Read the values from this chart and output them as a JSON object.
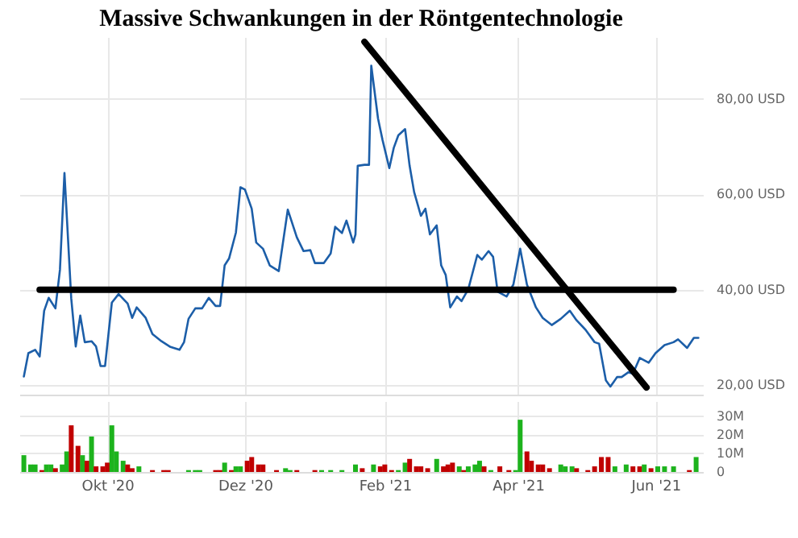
{
  "chart_data": [
    {
      "type": "line",
      "title": "Massive Schwankungen in der Röntgentechnologie",
      "x": [
        "2020-08-25",
        "2020-08-27",
        "2020-08-30",
        "2020-09-01",
        "2020-09-03",
        "2020-09-05",
        "2020-09-08",
        "2020-09-10",
        "2020-09-12",
        "2020-09-15",
        "2020-09-17",
        "2020-09-19",
        "2020-09-21",
        "2020-09-24",
        "2020-09-26",
        "2020-09-28",
        "2020-09-30",
        "2020-10-03",
        "2020-10-06",
        "2020-10-10",
        "2020-10-12",
        "2020-10-14",
        "2020-10-18",
        "2020-10-21",
        "2020-10-25",
        "2020-10-29",
        "2020-11-02",
        "2020-11-04",
        "2020-11-06",
        "2020-11-09",
        "2020-11-12",
        "2020-11-15",
        "2020-11-18",
        "2020-11-20",
        "2020-11-22",
        "2020-11-24",
        "2020-11-27",
        "2020-11-29",
        "2020-12-01",
        "2020-12-04",
        "2020-12-06",
        "2020-12-09",
        "2020-12-12",
        "2020-12-16",
        "2020-12-20",
        "2020-12-24",
        "2020-12-27",
        "2020-12-30",
        "2021-01-01",
        "2021-01-05",
        "2021-01-08",
        "2021-01-10",
        "2021-01-13",
        "2021-01-15",
        "2021-01-18",
        "2021-01-19",
        "2021-01-20",
        "2021-01-23",
        "2021-01-25",
        "2021-01-26",
        "2021-01-29",
        "2021-01-31",
        "2021-02-03",
        "2021-02-05",
        "2021-02-07",
        "2021-02-10",
        "2021-02-12",
        "2021-02-14",
        "2021-02-17",
        "2021-02-19",
        "2021-02-21",
        "2021-02-24",
        "2021-02-26",
        "2021-02-28",
        "2021-03-02",
        "2021-03-05",
        "2021-03-07",
        "2021-03-10",
        "2021-03-14",
        "2021-03-16",
        "2021-03-19",
        "2021-03-21",
        "2021-03-23",
        "2021-03-27",
        "2021-03-30",
        "2021-04-02",
        "2021-04-05",
        "2021-04-09",
        "2021-04-12",
        "2021-04-16",
        "2021-04-20",
        "2021-04-24",
        "2021-04-27",
        "2021-05-01",
        "2021-05-05",
        "2021-05-07",
        "2021-05-10",
        "2021-05-12",
        "2021-05-15",
        "2021-05-17",
        "2021-05-20",
        "2021-05-22",
        "2021-05-25",
        "2021-05-29",
        "2021-06-01",
        "2021-06-05",
        "2021-06-09",
        "2021-06-11",
        "2021-06-15",
        "2021-06-18",
        "2021-06-20"
      ],
      "series": [
        {
          "color": "#1c5ea8",
          "values": [
            21.8,
            26.7,
            27.4,
            26,
            35.6,
            38.3,
            36.1,
            44.2,
            64.5,
            38.2,
            28.1,
            34.6,
            29,
            29.2,
            28.1,
            24,
            24,
            37.3,
            39.1,
            37.1,
            34.1,
            36.3,
            34.1,
            30.7,
            29.2,
            28,
            27.4,
            29,
            33.9,
            36.1,
            36.1,
            38.3,
            36.6,
            36.6,
            45.1,
            46.6,
            52,
            61.5,
            61,
            57,
            49.9,
            48.6,
            45.1,
            43.9,
            56.8,
            51,
            48.1,
            48.3,
            45.6,
            45.6,
            47.6,
            53.2,
            51.9,
            54.5,
            49.9,
            51.6,
            66,
            66.2,
            66.2,
            87,
            75.9,
            71.4,
            65.5,
            69.8,
            72.4,
            73.7,
            66,
            60.5,
            55.5,
            57,
            51.6,
            53.5,
            45.1,
            43.1,
            36.3,
            38.6,
            37.6,
            40.1,
            47.3,
            46.3,
            48.1,
            46.9,
            39.6,
            38.6,
            41.1,
            48.6,
            41.1,
            36.3,
            34.1,
            32.6,
            33.9,
            35.6,
            33.6,
            31.6,
            29,
            28.7,
            21,
            19.7,
            21.7,
            21.7,
            22.7,
            22.4,
            25.7,
            24.7,
            26.7,
            28.4,
            29,
            29.6,
            27.8,
            29.9,
            29.9
          ]
        },
        {
          "color": "#000000",
          "x": [
            "2020-09-01",
            "2021-06-09"
          ],
          "values": [
            40,
            40
          ]
        },
        {
          "color": "#000000",
          "x": [
            "2021-01-23",
            "2021-05-28"
          ],
          "values": [
            92,
            19.5
          ]
        }
      ],
      "xlim": [
        "2020-08-23",
        "2021-06-22"
      ],
      "xticks": [
        {
          "value": "2020-10-01",
          "label": null
        },
        {
          "value": "2020-12-01",
          "label": null
        },
        {
          "value": "2021-02-01",
          "label": null
        },
        {
          "value": "2021-04-01",
          "label": null
        },
        {
          "value": "2021-06-01",
          "label": null
        }
      ],
      "ylim": [
        18,
        93
      ],
      "yticks": [
        {
          "value": 20,
          "label": "20,00 USD"
        },
        {
          "value": 40,
          "label": "40,00 USD"
        },
        {
          "value": 60,
          "label": "60,00 USD"
        },
        {
          "value": 80,
          "label": "80,00 USD"
        }
      ],
      "grid": true,
      "tick_labels": "y"
    },
    {
      "type": "bar",
      "x": [
        "2020-08-25",
        "2020-08-28",
        "2020-08-30",
        "2020-09-02",
        "2020-09-04",
        "2020-09-06",
        "2020-09-08",
        "2020-09-11",
        "2020-09-13",
        "2020-09-15",
        "2020-09-18",
        "2020-09-20",
        "2020-09-22",
        "2020-09-24",
        "2020-09-26",
        "2020-09-29",
        "2020-10-01",
        "2020-10-03",
        "2020-10-05",
        "2020-10-08",
        "2020-10-10",
        "2020-10-12",
        "2020-10-15",
        "2020-10-21",
        "2020-10-26",
        "2020-10-28",
        "2020-11-06",
        "2020-11-09",
        "2020-11-11",
        "2020-11-18",
        "2020-11-20",
        "2020-11-22",
        "2020-11-25",
        "2020-11-27",
        "2020-11-29",
        "2020-12-02",
        "2020-12-04",
        "2020-12-07",
        "2020-12-09",
        "2020-12-15",
        "2020-12-19",
        "2020-12-21",
        "2020-12-24",
        "2021-01-01",
        "2021-01-04",
        "2021-01-08",
        "2021-01-13",
        "2021-01-19",
        "2021-01-22",
        "2021-01-27",
        "2021-01-30",
        "2021-02-01",
        "2021-02-04",
        "2021-02-07",
        "2021-02-10",
        "2021-02-12",
        "2021-02-15",
        "2021-02-17",
        "2021-02-20",
        "2021-02-24",
        "2021-02-27",
        "2021-03-01",
        "2021-03-03",
        "2021-03-06",
        "2021-03-08",
        "2021-03-10",
        "2021-03-13",
        "2021-03-15",
        "2021-03-17",
        "2021-03-20",
        "2021-03-24",
        "2021-03-28",
        "2021-03-31",
        "2021-04-02",
        "2021-04-05",
        "2021-04-07",
        "2021-04-10",
        "2021-04-12",
        "2021-04-15",
        "2021-04-20",
        "2021-04-22",
        "2021-04-25",
        "2021-04-27",
        "2021-05-02",
        "2021-05-05",
        "2021-05-08",
        "2021-05-11",
        "2021-05-14",
        "2021-05-19",
        "2021-05-22",
        "2021-05-25",
        "2021-05-27",
        "2021-05-30",
        "2021-06-02",
        "2021-06-05",
        "2021-06-09",
        "2021-06-16",
        "2021-06-19"
      ],
      "values": [
        9,
        4,
        4,
        1,
        4,
        4,
        2,
        4,
        11,
        25,
        14,
        9,
        6,
        19,
        3,
        3,
        5,
        25,
        11,
        6,
        4,
        2,
        3,
        1,
        1,
        1,
        1,
        1,
        1,
        1,
        1,
        5,
        1,
        3,
        3,
        6,
        8,
        4,
        4,
        1,
        2,
        1,
        1,
        1,
        1,
        1,
        1,
        4,
        2,
        4,
        3,
        4,
        1,
        1,
        5,
        7,
        3,
        3,
        2,
        7,
        3,
        4,
        5,
        3,
        1,
        3,
        4,
        6,
        3,
        1,
        3,
        1,
        1,
        28,
        11,
        6,
        4,
        4,
        2,
        4,
        3,
        3,
        2,
        1,
        3,
        8,
        8,
        3,
        4,
        3,
        3,
        4,
        2,
        3,
        3,
        3,
        1,
        8
      ],
      "colors": [
        "#1db31d",
        "#1db31d",
        "#1db31d",
        "#c00000",
        "#1db31d",
        "#1db31d",
        "#c00000",
        "#1db31d",
        "#1db31d",
        "#c00000",
        "#c00000",
        "#1db31d",
        "#c00000",
        "#1db31d",
        "#c00000",
        "#c00000",
        "#c00000",
        "#1db31d",
        "#1db31d",
        "#1db31d",
        "#c00000",
        "#c00000",
        "#1db31d",
        "#c00000",
        "#c00000",
        "#c00000",
        "#1db31d",
        "#1db31d",
        "#1db31d",
        "#c00000",
        "#c00000",
        "#1db31d",
        "#c00000",
        "#1db31d",
        "#1db31d",
        "#c00000",
        "#c00000",
        "#c00000",
        "#c00000",
        "#c00000",
        "#1db31d",
        "#1db31d",
        "#c00000",
        "#c00000",
        "#1db31d",
        "#1db31d",
        "#1db31d",
        "#1db31d",
        "#c00000",
        "#1db31d",
        "#c00000",
        "#c00000",
        "#c00000",
        "#1db31d",
        "#1db31d",
        "#c00000",
        "#c00000",
        "#c00000",
        "#c00000",
        "#1db31d",
        "#c00000",
        "#c00000",
        "#c00000",
        "#1db31d",
        "#c00000",
        "#1db31d",
        "#1db31d",
        "#1db31d",
        "#c00000",
        "#1db31d",
        "#c00000",
        "#c00000",
        "#1db31d",
        "#1db31d",
        "#c00000",
        "#c00000",
        "#c00000",
        "#c00000",
        "#c00000",
        "#1db31d",
        "#1db31d",
        "#1db31d",
        "#c00000",
        "#c00000",
        "#c00000",
        "#c00000",
        "#c00000",
        "#1db31d",
        "#1db31d",
        "#c00000",
        "#c00000",
        "#1db31d",
        "#c00000",
        "#1db31d",
        "#1db31d",
        "#1db31d",
        "#c00000",
        "#1db31d"
      ],
      "xlim": [
        "2020-08-23",
        "2021-06-22"
      ],
      "xticks": [
        {
          "value": "2020-10-01",
          "label": "Okt '20"
        },
        {
          "value": "2020-12-01",
          "label": "Dez '20"
        },
        {
          "value": "2021-02-01",
          "label": "Feb '21"
        },
        {
          "value": "2021-04-01",
          "label": "Apr '21"
        },
        {
          "value": "2021-06-01",
          "label": "Jun '21"
        }
      ],
      "ylim": [
        0,
        38
      ],
      "yticks": [
        0,
        {
          "value": 10,
          "label": "10M"
        },
        {
          "value": 20,
          "label": "20M"
        },
        {
          "value": 30,
          "label": "30M"
        }
      ],
      "grid": true
    }
  ]
}
